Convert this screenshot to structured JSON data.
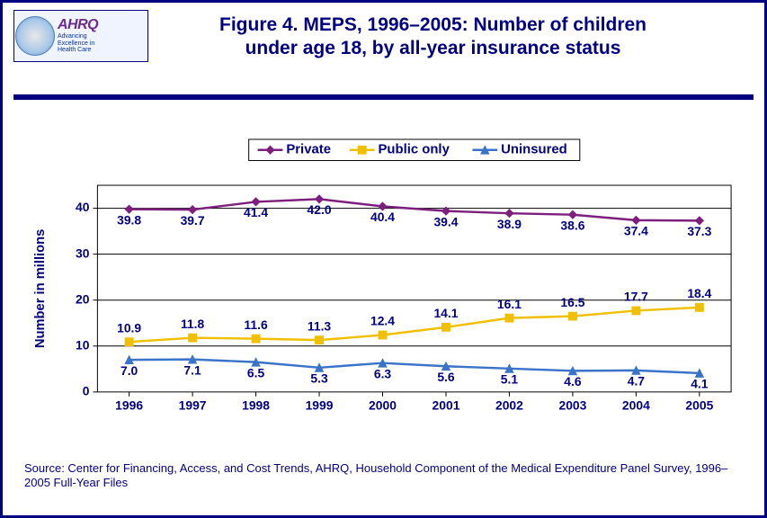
{
  "logo": {
    "brand": "AHRQ",
    "tagline1": "Advancing",
    "tagline2": "Excellence in",
    "tagline3": "Health Care"
  },
  "title_line1": "Figure 4. MEPS, 1996–2005: Number of children",
  "title_line2": "under age 18, by all-year insurance status",
  "source": "Source: Center for Financing, Access, and Cost Trends, AHRQ, Household Component of the Medical Expenditure Panel Survey, 1996–2005 Full-Year Files",
  "chart": {
    "type": "line",
    "ylabel": "Number in millions",
    "years": [
      "1996",
      "1997",
      "1998",
      "1999",
      "2000",
      "2001",
      "2002",
      "2003",
      "2004",
      "2005"
    ],
    "ylim": [
      0,
      45
    ],
    "yticks": [
      0,
      10,
      20,
      30,
      40
    ],
    "series": [
      {
        "name": "Private",
        "color": "#7d1f7d",
        "marker": "diamond",
        "values": [
          39.8,
          39.7,
          41.4,
          42.0,
          40.4,
          39.4,
          38.9,
          38.6,
          37.4,
          37.3
        ],
        "label_pos": "below"
      },
      {
        "name": "Public only",
        "color": "#f0c000",
        "marker": "square",
        "values": [
          10.9,
          11.8,
          11.6,
          11.3,
          12.4,
          14.1,
          16.1,
          16.5,
          17.7,
          18.4
        ],
        "label_pos": "above"
      },
      {
        "name": "Uninsured",
        "color": "#3b73c8",
        "marker": "triangle",
        "values": [
          7.0,
          7.1,
          6.5,
          5.3,
          6.3,
          5.6,
          5.1,
          4.6,
          4.7,
          4.1
        ],
        "label_pos": "below"
      }
    ],
    "line_width": 2.5,
    "marker_size": 9,
    "grid_color": "#000000",
    "plot_border_color": "#000000",
    "background_color": "#ffffff",
    "label_fontsize": 14,
    "axis_fontsize": 14,
    "ylabel_fontsize": 15,
    "legend_fontsize": 15
  }
}
